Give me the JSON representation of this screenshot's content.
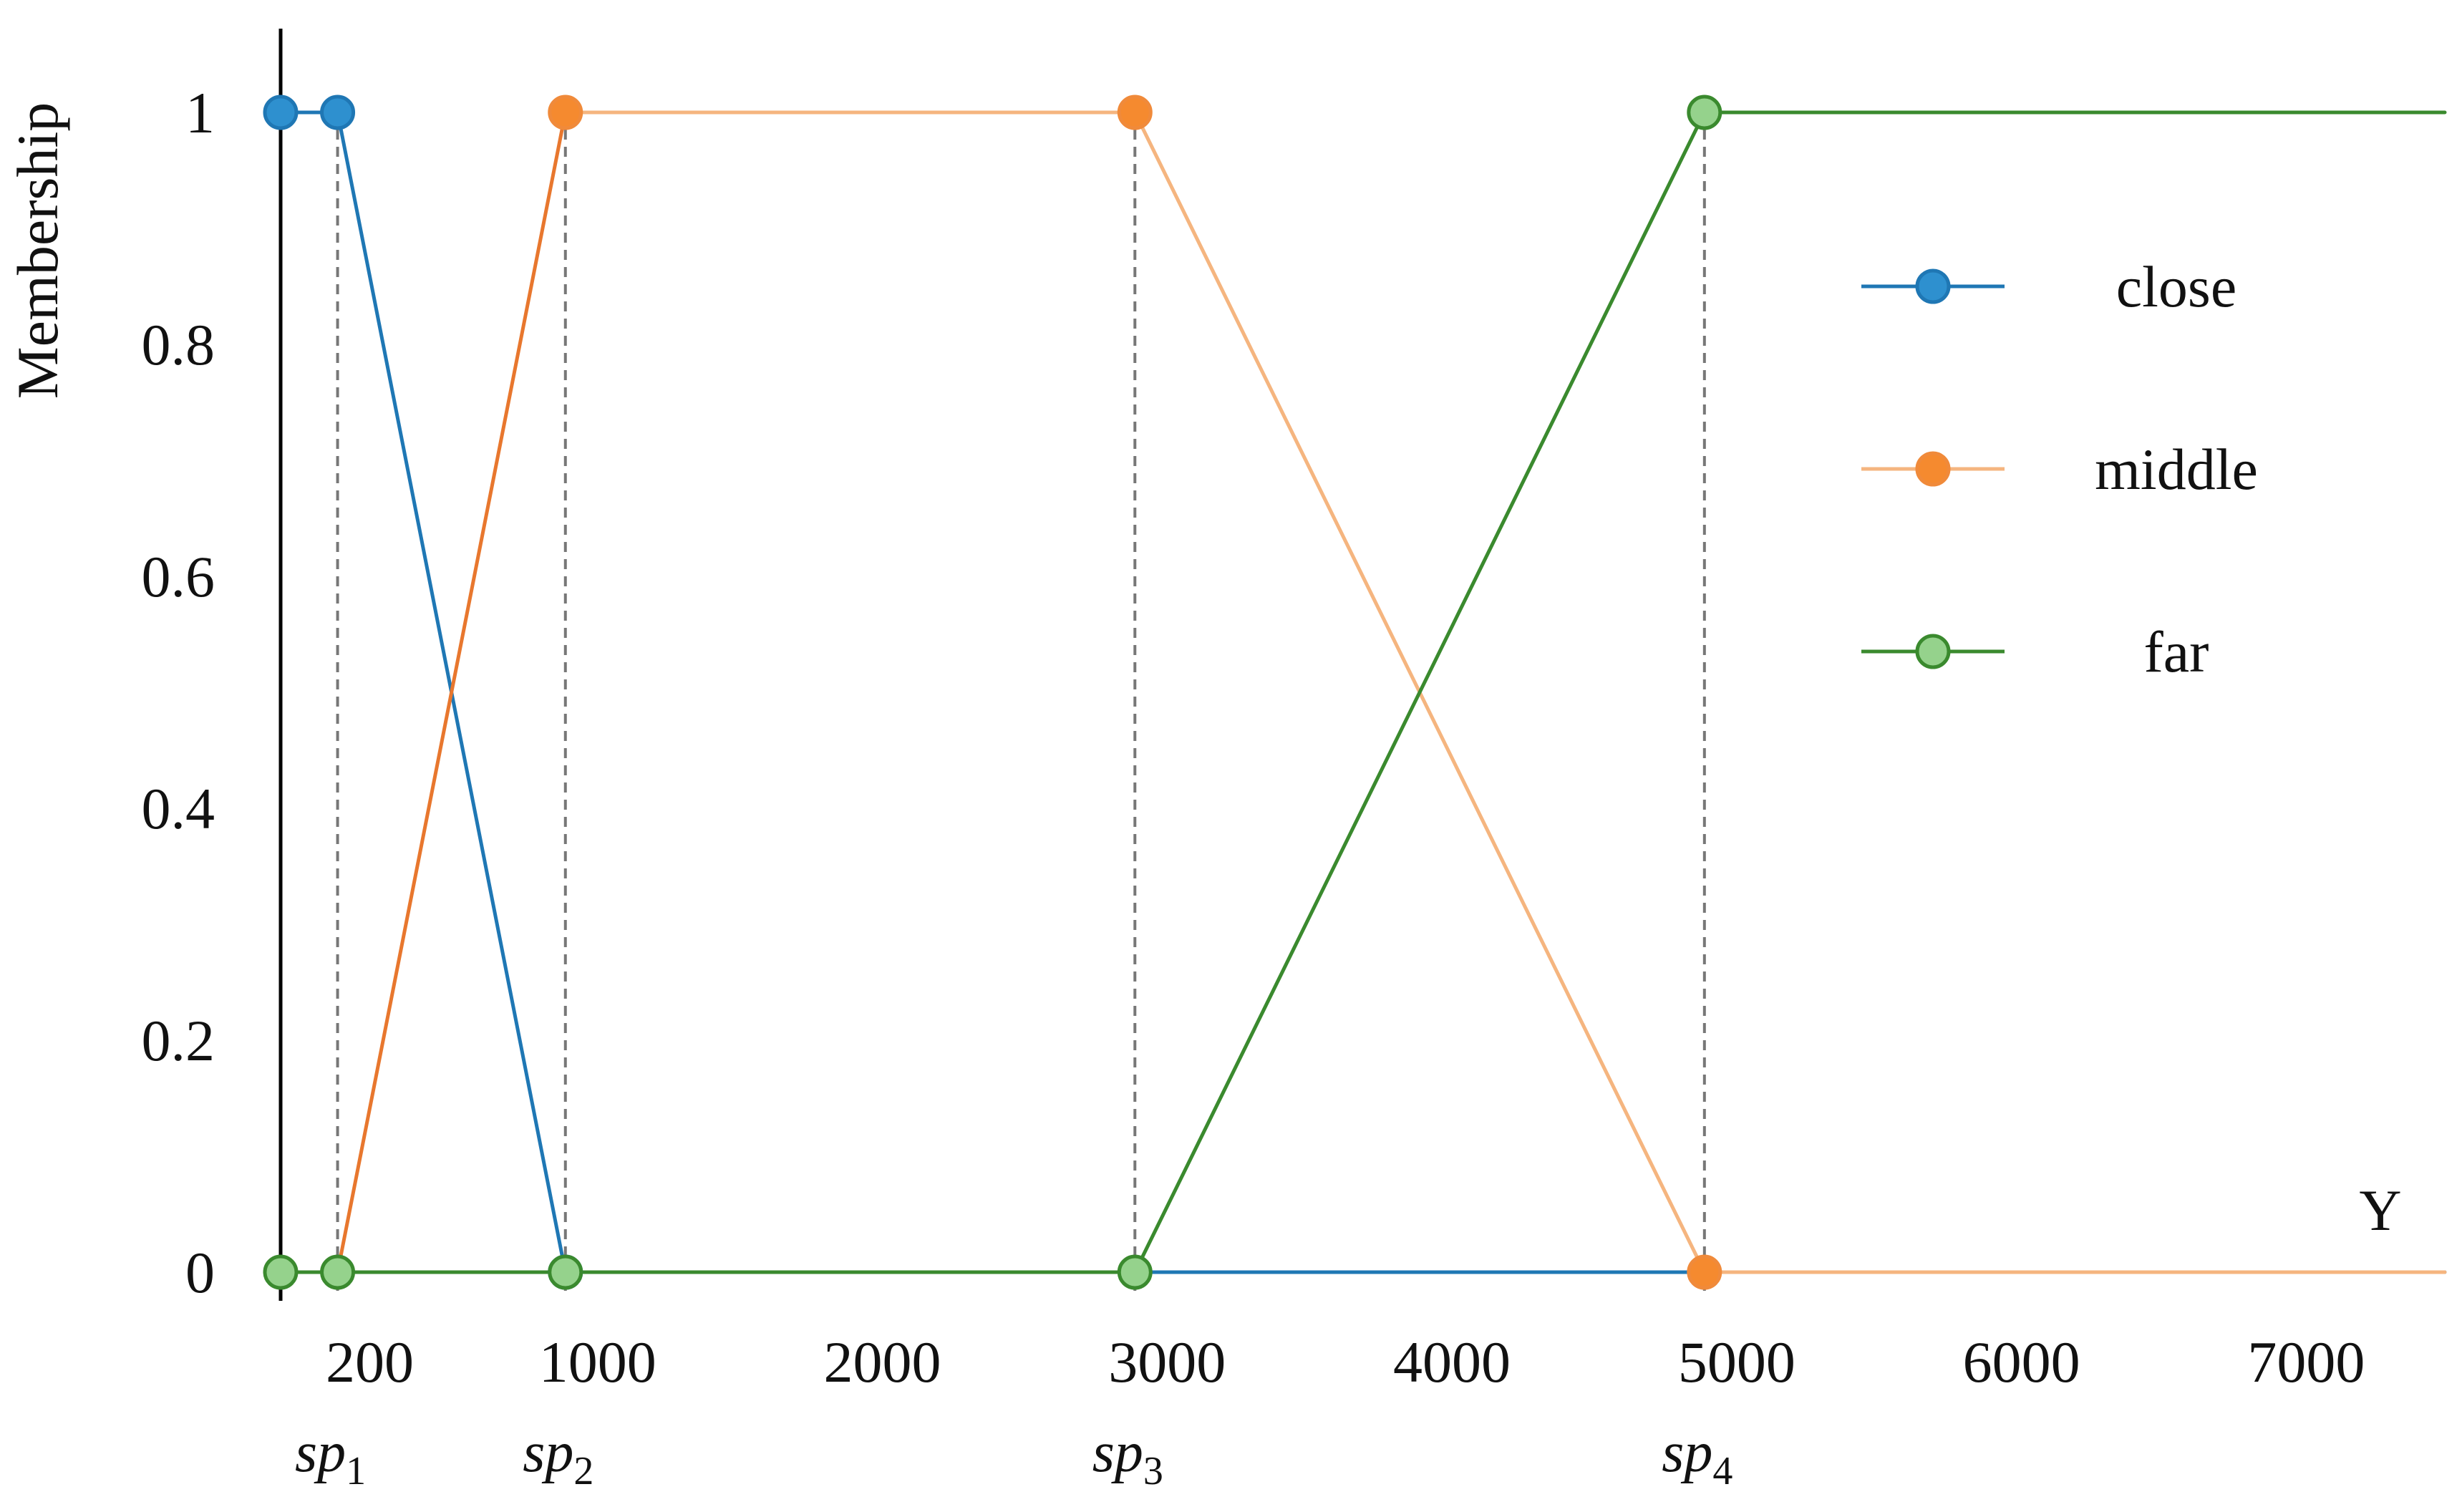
{
  "chart_data": {
    "type": "line",
    "title": "",
    "xlabel": "Y",
    "ylabel": "Membership",
    "xlim": [
      0,
      7600
    ],
    "ylim": [
      0,
      1
    ],
    "y_ticks": [
      {
        "value": 0,
        "label": "0"
      },
      {
        "value": 0.2,
        "label": "0.2"
      },
      {
        "value": 0.4,
        "label": "0.4"
      },
      {
        "value": 0.6,
        "label": "0.6"
      },
      {
        "value": 0.8,
        "label": "0.8"
      },
      {
        "value": 1,
        "label": "1"
      }
    ],
    "x_ticks": [
      {
        "value": 200,
        "label": "200"
      },
      {
        "value": 1000,
        "label": "1000"
      },
      {
        "value": 2000,
        "label": "2000"
      },
      {
        "value": 3000,
        "label": "3000"
      },
      {
        "value": 4000,
        "label": "4000"
      },
      {
        "value": 5000,
        "label": "5000"
      },
      {
        "value": 6000,
        "label": "6000"
      },
      {
        "value": 7000,
        "label": "7000"
      }
    ],
    "split_points": [
      {
        "x": 200,
        "base": "sp",
        "sub": "1"
      },
      {
        "x": 1000,
        "base": "sp",
        "sub": "2"
      },
      {
        "x": 3000,
        "base": "sp",
        "sub": "3"
      },
      {
        "x": 5000,
        "base": "sp",
        "sub": "4"
      }
    ],
    "grid": false,
    "legend_position": "right",
    "series": [
      {
        "name": "close",
        "color": "#1f77b4",
        "marker_fill": "#2e90cf",
        "x": [
          0,
          200,
          1000,
          3000,
          5000,
          7600
        ],
        "y": [
          1,
          1,
          0,
          0,
          0,
          0
        ],
        "markers": [
          0,
          1,
          2
        ]
      },
      {
        "name": "middle",
        "color": "#f5b57f",
        "segment_colors": [
          "#e8772e",
          "#f5b57f",
          "#f5b57f",
          "#f5b57f"
        ],
        "marker_fill": "#f58a2f",
        "x": [
          200,
          1000,
          3000,
          5000,
          7600
        ],
        "y": [
          0,
          1,
          1,
          0,
          0
        ],
        "markers": [
          1,
          2,
          3
        ]
      },
      {
        "name": "far",
        "color": "#3a8a2e",
        "marker_fill": "#95d28c",
        "x": [
          0,
          200,
          1000,
          3000,
          5000,
          7600
        ],
        "y": [
          0,
          0,
          0,
          0,
          1,
          1
        ],
        "markers": [
          0,
          1,
          2,
          3,
          4
        ]
      }
    ]
  }
}
